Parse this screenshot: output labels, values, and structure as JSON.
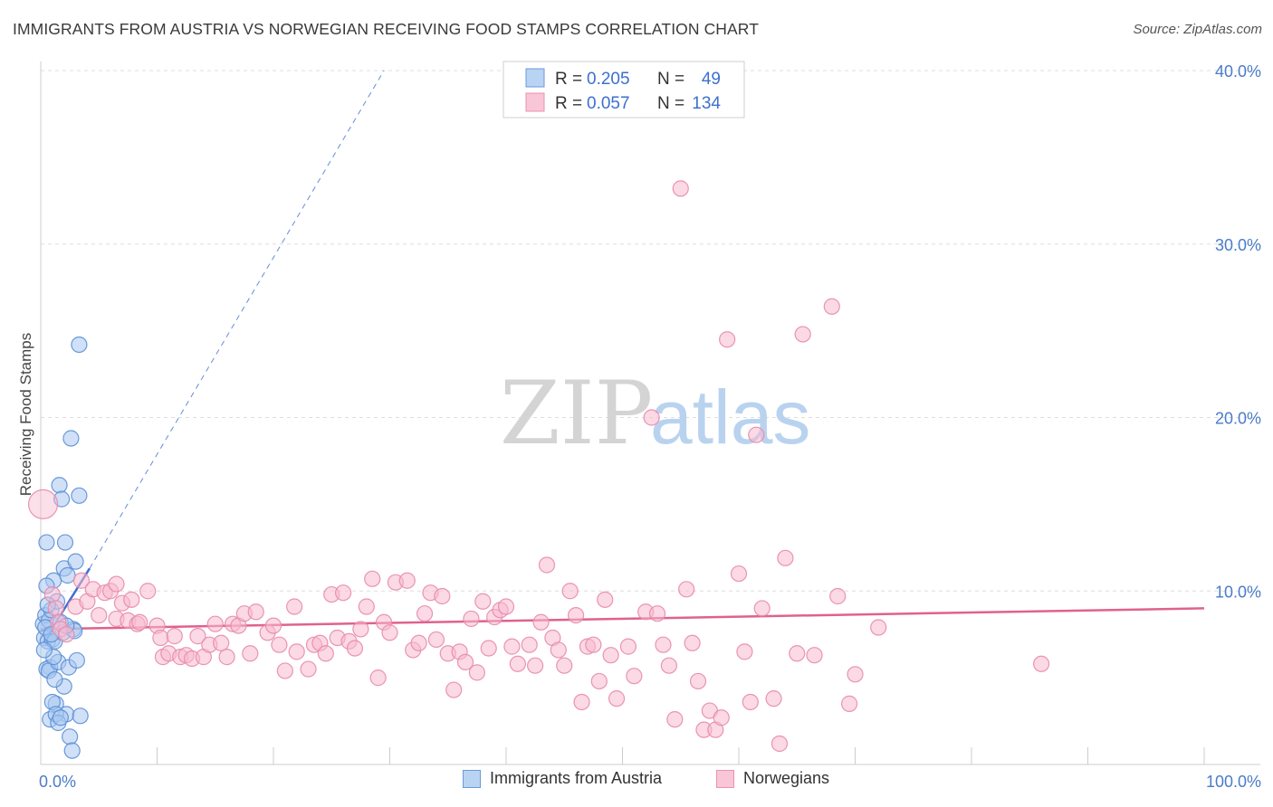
{
  "title": "IMMIGRANTS FROM AUSTRIA VS NORWEGIAN RECEIVING FOOD STAMPS CORRELATION CHART",
  "source": "Source: ZipAtlas.com",
  "watermark": {
    "zip": "ZIP",
    "atlas": "atlas"
  },
  "colors": {
    "blue_fill": "#a9c8f0",
    "blue_stroke": "#5b8fd6",
    "blue_line": "#3f6fd0",
    "pink_fill": "#f7b9cf",
    "pink_stroke": "#e88aab",
    "pink_line": "#e0618f",
    "axis_text": "#4a7cc9",
    "grid": "#dddddd"
  },
  "legend": {
    "rows": [
      {
        "r_label": "R =",
        "r_value": "0.205",
        "n_label": "N =",
        "n_value": "49"
      },
      {
        "r_label": "R =",
        "r_value": "0.057",
        "n_label": "N =",
        "n_value": "134"
      }
    ]
  },
  "bottom_legend": [
    {
      "label": "Immigrants from Austria"
    },
    {
      "label": "Norwegians"
    }
  ],
  "chart_data": {
    "type": "scatter",
    "title": "IMMIGRANTS FROM AUSTRIA VS NORWEGIAN RECEIVING FOOD STAMPS CORRELATION CHART",
    "xlabel": "",
    "ylabel": "Receiving Food Stamps",
    "xlim": [
      0,
      100
    ],
    "ylim": [
      0,
      40
    ],
    "x_tick_labels": [
      "0.0%",
      "100.0%"
    ],
    "y_ticks": [
      10,
      20,
      30,
      40
    ],
    "y_tick_labels": [
      "10.0%",
      "20.0%",
      "30.0%",
      "40.0%"
    ],
    "grid": "horizontal dashed",
    "legend_position": "top-center",
    "series": [
      {
        "name": "Immigrants from Austria",
        "color": "#a9c8f0",
        "r": 0.205,
        "n": 49,
        "trend": {
          "x": [
            0.2,
            4.2
          ],
          "y": [
            7.0,
            11.3
          ]
        },
        "trend_ext": {
          "x": [
            4.2,
            29.5
          ],
          "y": [
            11.3,
            40.0
          ]
        },
        "points": [
          [
            0.2,
            8.1
          ],
          [
            0.3,
            7.3
          ],
          [
            0.4,
            8.6
          ],
          [
            0.5,
            12.8
          ],
          [
            0.6,
            7.1
          ],
          [
            0.7,
            8.3
          ],
          [
            0.8,
            5.6
          ],
          [
            0.9,
            8.9
          ],
          [
            1.0,
            7.2
          ],
          [
            0.5,
            5.5
          ],
          [
            0.7,
            5.4
          ],
          [
            1.1,
            10.6
          ],
          [
            1.2,
            7.1
          ],
          [
            1.3,
            3.5
          ],
          [
            1.4,
            9.4
          ],
          [
            1.5,
            5.9
          ],
          [
            1.6,
            16.1
          ],
          [
            1.7,
            8.2
          ],
          [
            1.8,
            15.3
          ],
          [
            1.9,
            7.6
          ],
          [
            2.0,
            11.3
          ],
          [
            2.0,
            4.5
          ],
          [
            2.1,
            12.8
          ],
          [
            2.2,
            2.9
          ],
          [
            2.3,
            10.9
          ],
          [
            2.4,
            5.6
          ],
          [
            2.5,
            1.6
          ],
          [
            2.6,
            18.8
          ],
          [
            2.7,
            0.8
          ],
          [
            2.8,
            7.8
          ],
          [
            2.9,
            7.7
          ],
          [
            3.0,
            11.7
          ],
          [
            3.1,
            6.0
          ],
          [
            3.3,
            24.2
          ],
          [
            3.3,
            15.5
          ],
          [
            3.4,
            2.8
          ],
          [
            0.8,
            2.6
          ],
          [
            1.0,
            3.6
          ],
          [
            1.3,
            2.9
          ],
          [
            1.5,
            2.4
          ],
          [
            0.4,
            7.9
          ],
          [
            0.6,
            9.2
          ],
          [
            0.9,
            7.5
          ],
          [
            1.1,
            6.2
          ],
          [
            0.3,
            6.6
          ],
          [
            1.7,
            2.7
          ],
          [
            2.2,
            8.0
          ],
          [
            0.5,
            10.3
          ],
          [
            1.2,
            4.9
          ]
        ]
      },
      {
        "name": "Norwegians",
        "color": "#f7b9cf",
        "r": 0.057,
        "n": 134,
        "trend": {
          "x": [
            0,
            100
          ],
          "y": [
            7.8,
            9.0
          ]
        },
        "points": [
          [
            0.2,
            15.0
          ],
          [
            1.0,
            9.8
          ],
          [
            1.3,
            9.0
          ],
          [
            1.5,
            8.2
          ],
          [
            1.7,
            7.8
          ],
          [
            2.2,
            7.5
          ],
          [
            3.0,
            9.1
          ],
          [
            3.5,
            10.6
          ],
          [
            4.0,
            9.4
          ],
          [
            4.5,
            10.1
          ],
          [
            5.0,
            8.6
          ],
          [
            5.5,
            9.9
          ],
          [
            6.0,
            10.0
          ],
          [
            6.5,
            8.4
          ],
          [
            6.5,
            10.4
          ],
          [
            7.0,
            9.3
          ],
          [
            7.5,
            8.3
          ],
          [
            7.8,
            9.5
          ],
          [
            8.3,
            8.1
          ],
          [
            8.5,
            8.2
          ],
          [
            9.2,
            10.0
          ],
          [
            10.0,
            8.0
          ],
          [
            10.3,
            7.3
          ],
          [
            10.5,
            6.2
          ],
          [
            11.0,
            6.4
          ],
          [
            11.5,
            7.4
          ],
          [
            12.0,
            6.2
          ],
          [
            12.5,
            6.3
          ],
          [
            13.0,
            6.1
          ],
          [
            13.5,
            7.4
          ],
          [
            14.0,
            6.2
          ],
          [
            14.5,
            6.9
          ],
          [
            15.0,
            8.1
          ],
          [
            15.5,
            7.0
          ],
          [
            16.0,
            6.2
          ],
          [
            16.5,
            8.1
          ],
          [
            17.0,
            8.0
          ],
          [
            17.5,
            8.7
          ],
          [
            18.0,
            6.4
          ],
          [
            18.5,
            8.8
          ],
          [
            19.5,
            7.6
          ],
          [
            20.0,
            8.0
          ],
          [
            20.5,
            6.9
          ],
          [
            21.0,
            5.4
          ],
          [
            21.8,
            9.1
          ],
          [
            22.0,
            6.5
          ],
          [
            23.0,
            5.5
          ],
          [
            23.5,
            6.9
          ],
          [
            24.0,
            7.0
          ],
          [
            24.5,
            6.4
          ],
          [
            25.0,
            9.8
          ],
          [
            25.5,
            7.3
          ],
          [
            26.0,
            9.9
          ],
          [
            26.5,
            7.1
          ],
          [
            27.0,
            6.7
          ],
          [
            27.5,
            7.8
          ],
          [
            28.0,
            9.1
          ],
          [
            28.5,
            10.7
          ],
          [
            29.0,
            5.0
          ],
          [
            29.5,
            8.2
          ],
          [
            30.0,
            7.6
          ],
          [
            30.5,
            10.5
          ],
          [
            31.5,
            10.6
          ],
          [
            32.0,
            6.6
          ],
          [
            32.5,
            7.0
          ],
          [
            33.0,
            8.7
          ],
          [
            33.5,
            9.9
          ],
          [
            34.0,
            7.2
          ],
          [
            34.5,
            9.7
          ],
          [
            35.0,
            6.4
          ],
          [
            35.5,
            4.3
          ],
          [
            36.0,
            6.5
          ],
          [
            36.5,
            5.9
          ],
          [
            37.0,
            8.4
          ],
          [
            37.5,
            5.3
          ],
          [
            38.0,
            9.4
          ],
          [
            38.5,
            6.7
          ],
          [
            39.0,
            8.5
          ],
          [
            39.5,
            8.9
          ],
          [
            40.0,
            9.1
          ],
          [
            40.5,
            6.8
          ],
          [
            41.0,
            5.8
          ],
          [
            42.0,
            6.9
          ],
          [
            42.5,
            5.7
          ],
          [
            43.0,
            8.2
          ],
          [
            43.5,
            11.5
          ],
          [
            44.0,
            7.3
          ],
          [
            44.5,
            6.6
          ],
          [
            45.0,
            5.7
          ],
          [
            45.5,
            10.0
          ],
          [
            46.0,
            8.6
          ],
          [
            46.5,
            3.6
          ],
          [
            47.0,
            6.8
          ],
          [
            47.5,
            6.9
          ],
          [
            48.0,
            4.8
          ],
          [
            48.5,
            9.5
          ],
          [
            49.0,
            6.3
          ],
          [
            49.5,
            3.8
          ],
          [
            50.5,
            6.8
          ],
          [
            51.0,
            5.1
          ],
          [
            52.0,
            8.8
          ],
          [
            52.5,
            20.0
          ],
          [
            53.0,
            8.7
          ],
          [
            53.5,
            6.9
          ],
          [
            54.0,
            5.7
          ],
          [
            54.5,
            2.6
          ],
          [
            55.0,
            33.2
          ],
          [
            55.5,
            10.1
          ],
          [
            56.0,
            7.0
          ],
          [
            56.5,
            4.8
          ],
          [
            57.0,
            2.0
          ],
          [
            57.5,
            3.1
          ],
          [
            58.0,
            2.0
          ],
          [
            58.5,
            2.7
          ],
          [
            59.0,
            24.5
          ],
          [
            60.0,
            11.0
          ],
          [
            60.5,
            6.5
          ],
          [
            61.0,
            3.6
          ],
          [
            61.5,
            19.0
          ],
          [
            62.0,
            9.0
          ],
          [
            63.0,
            3.8
          ],
          [
            63.5,
            1.2
          ],
          [
            64.0,
            11.9
          ],
          [
            65.0,
            6.4
          ],
          [
            65.5,
            24.8
          ],
          [
            66.5,
            6.3
          ],
          [
            68.0,
            26.4
          ],
          [
            68.5,
            9.7
          ],
          [
            69.5,
            3.5
          ],
          [
            70.0,
            5.2
          ],
          [
            72.0,
            7.9
          ],
          [
            86.0,
            5.8
          ]
        ]
      }
    ]
  }
}
